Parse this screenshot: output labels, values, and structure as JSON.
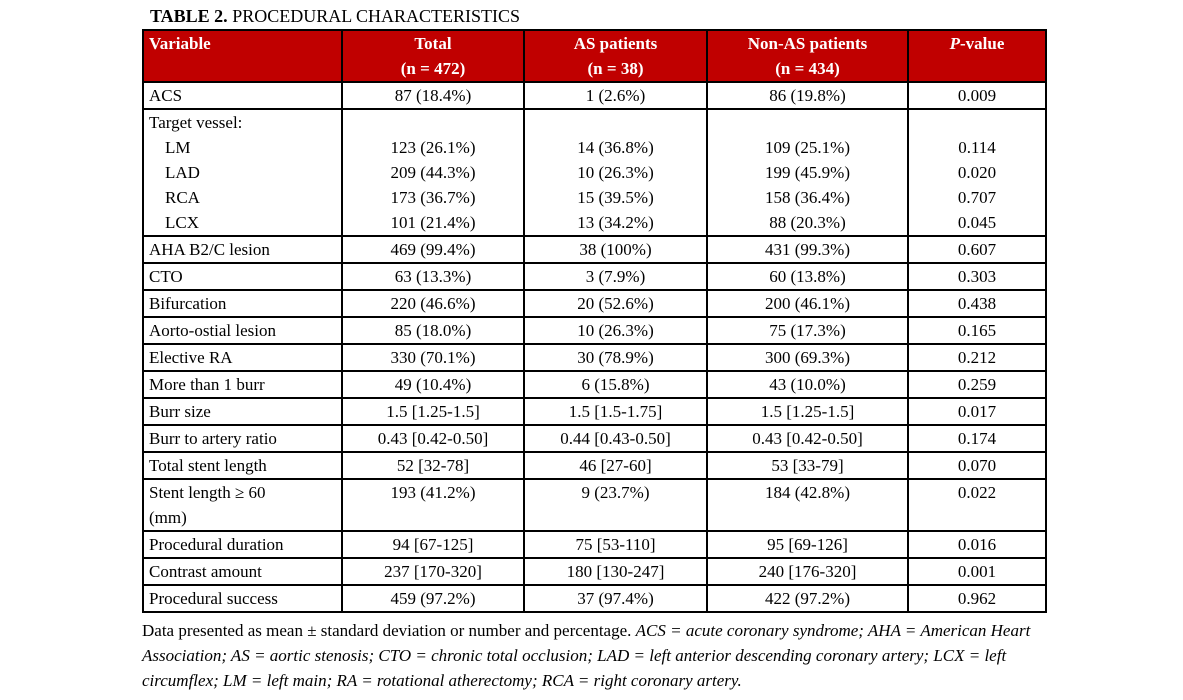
{
  "title": {
    "label": "TABLE 2.",
    "text": "PROCEDURAL CHARACTERISTICS"
  },
  "colors": {
    "header_bg": "#c00000",
    "header_text": "#ffffff",
    "border": "#000000"
  },
  "table": {
    "columns": [
      {
        "id": "variable",
        "label": "Variable",
        "sub": "",
        "align": "left"
      },
      {
        "id": "total",
        "label": "Total",
        "sub": "(n = 472)",
        "align": "center"
      },
      {
        "id": "as-patients",
        "label": "AS patients",
        "sub": "(n = 38)",
        "align": "center"
      },
      {
        "id": "non-as-patients",
        "label": "Non-AS patients",
        "sub": "(n = 434)",
        "align": "center"
      },
      {
        "id": "p-value",
        "label_italic": "P",
        "label_rest": "-value",
        "sub": "",
        "align": "center"
      }
    ],
    "rows": [
      {
        "cells": [
          [
            "ACS"
          ],
          [
            "87 (18.4%)"
          ],
          [
            "1 (2.6%)"
          ],
          [
            "86 (19.8%)"
          ],
          [
            "0.009"
          ]
        ]
      },
      {
        "group_header": "Target vessel:",
        "items": [
          {
            "cells": [
              [
                "LM"
              ],
              [
                "123 (26.1%)"
              ],
              [
                "14 (36.8%)"
              ],
              [
                "109 (25.1%)"
              ],
              [
                "0.114"
              ]
            ]
          },
          {
            "cells": [
              [
                "LAD"
              ],
              [
                "209 (44.3%)"
              ],
              [
                "10 (26.3%)"
              ],
              [
                "199 (45.9%)"
              ],
              [
                "0.020"
              ]
            ]
          },
          {
            "cells": [
              [
                "RCA"
              ],
              [
                "173 (36.7%)"
              ],
              [
                "15 (39.5%)"
              ],
              [
                "158 (36.4%)"
              ],
              [
                "0.707"
              ]
            ]
          },
          {
            "cells": [
              [
                "LCX"
              ],
              [
                "101 (21.4%)"
              ],
              [
                "13 (34.2%)"
              ],
              [
                "88 (20.3%)"
              ],
              [
                "0.045"
              ]
            ]
          }
        ]
      },
      {
        "cells": [
          [
            "AHA B2/C lesion"
          ],
          [
            "469 (99.4%)"
          ],
          [
            "38 (100%)"
          ],
          [
            "431 (99.3%)"
          ],
          [
            "0.607"
          ]
        ]
      },
      {
        "cells": [
          [
            "CTO"
          ],
          [
            "63 (13.3%)"
          ],
          [
            "3 (7.9%)"
          ],
          [
            "60 (13.8%)"
          ],
          [
            "0.303"
          ]
        ]
      },
      {
        "cells": [
          [
            "Bifurcation"
          ],
          [
            "220 (46.6%)"
          ],
          [
            "20 (52.6%)"
          ],
          [
            "200 (46.1%)"
          ],
          [
            "0.438"
          ]
        ]
      },
      {
        "cells": [
          [
            "Aorto-ostial lesion"
          ],
          [
            "85 (18.0%)"
          ],
          [
            "10 (26.3%)"
          ],
          [
            "75 (17.3%)"
          ],
          [
            "0.165"
          ]
        ]
      },
      {
        "cells": [
          [
            "Elective RA"
          ],
          [
            "330 (70.1%)"
          ],
          [
            "30 (78.9%)"
          ],
          [
            "300 (69.3%)"
          ],
          [
            "0.212"
          ]
        ]
      },
      {
        "cells": [
          [
            "More than 1 burr"
          ],
          [
            "49 (10.4%)"
          ],
          [
            "6 (15.8%)"
          ],
          [
            "43 (10.0%)"
          ],
          [
            "0.259"
          ]
        ]
      },
      {
        "cells": [
          [
            "Burr size"
          ],
          [
            "1.5 [1.25-1.5]"
          ],
          [
            "1.5 [1.5-1.75]"
          ],
          [
            "1.5 [1.25-1.5]"
          ],
          [
            "0.017"
          ]
        ]
      },
      {
        "cells": [
          [
            "Burr to artery ratio"
          ],
          [
            "0.43 [0.42-0.50]"
          ],
          [
            "0.44 [0.43-0.50]"
          ],
          [
            "0.43 [0.42-0.50]"
          ],
          [
            "0.174"
          ]
        ]
      },
      {
        "cells": [
          [
            "Total stent length"
          ],
          [
            "52 [32-78]"
          ],
          [
            "46 [27-60]"
          ],
          [
            "53 [33-79]"
          ],
          [
            "0.070"
          ]
        ]
      },
      {
        "cells": [
          [
            "Stent length ≥ 60",
            "(mm)"
          ],
          [
            "193 (41.2%)"
          ],
          [
            "9 (23.7%)"
          ],
          [
            "184 (42.8%)"
          ],
          [
            "0.022"
          ]
        ]
      },
      {
        "cells": [
          [
            "Procedural duration"
          ],
          [
            "94 [67-125]"
          ],
          [
            "75 [53-110]"
          ],
          [
            "95 [69-126]"
          ],
          [
            "0.016"
          ]
        ]
      },
      {
        "cells": [
          [
            "Contrast amount"
          ],
          [
            "237 [170-320]"
          ],
          [
            "180 [130-247]"
          ],
          [
            "240 [176-320]"
          ],
          [
            "0.001"
          ]
        ]
      },
      {
        "cells": [
          [
            "Procedural success"
          ],
          [
            "459 (97.2%)"
          ],
          [
            "37 (97.4%)"
          ],
          [
            "422 (97.2%)"
          ],
          [
            "0.962"
          ]
        ]
      }
    ]
  },
  "footnote": {
    "roman": "Data presented as mean ± standard deviation or number and percentage. ",
    "italic": "ACS = acute coronary syndrome; AHA = American Heart Association; AS = aortic stenosis; CTO = chronic total occlusion; LAD = left anterior descending coronary artery; LCX = left circumflex; LM = left main; RA = rotational atherectomy; RCA = right coronary artery."
  }
}
